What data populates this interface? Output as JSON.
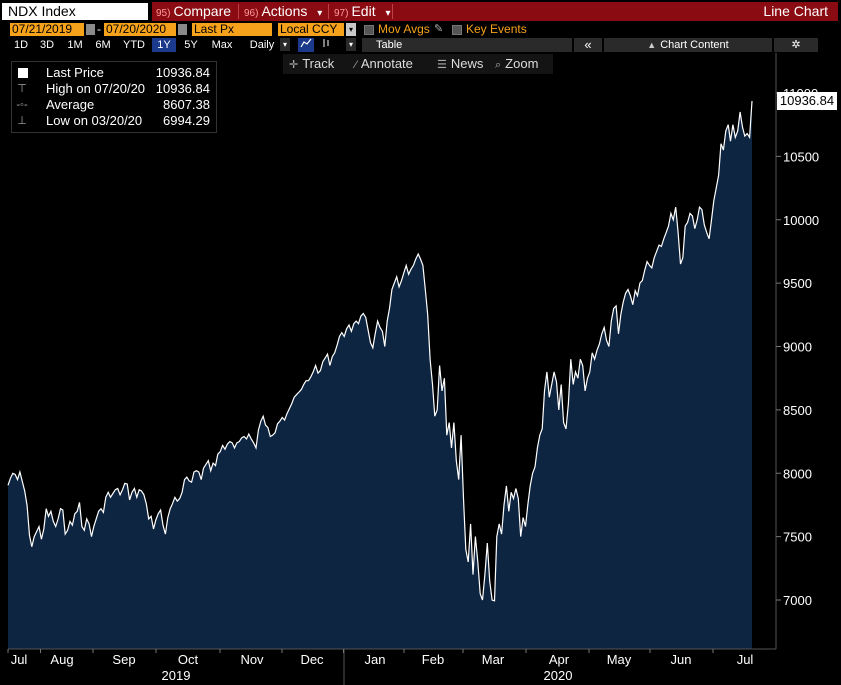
{
  "topbar": {
    "ticker": "NDX Index",
    "compare_num": "95)",
    "compare_label": "Compare",
    "actions_num": "96)",
    "actions_label": "Actions",
    "edit_num": "97)",
    "edit_label": "Edit",
    "dropdown_glyph": "▾",
    "title": "Line Chart"
  },
  "controls": {
    "start_date": "07/21/2019",
    "date_dash": "-",
    "end_date": "07/20/2020",
    "price_field": "Last Px",
    "currency": "Local CCY",
    "mov_avgs": "Mov Avgs",
    "key_events": "Key Events"
  },
  "periods": {
    "items": [
      "1D",
      "3D",
      "1M",
      "6M",
      "YTD",
      "1Y",
      "5Y",
      "Max"
    ],
    "selected": "1Y",
    "frequency": "Daily",
    "table": "Table",
    "collapse": "«",
    "chart_content": "Chart Content",
    "settings_glyph": "✲"
  },
  "toolbar": {
    "track": "Track",
    "annotate": "Annotate",
    "news": "News",
    "zoom": "Zoom"
  },
  "legend": [
    {
      "label": "Last Price",
      "value": "10936.84",
      "icon": "square-icon"
    },
    {
      "label": "High on 07/20/20",
      "value": "10936.84",
      "icon": "high-marker-icon"
    },
    {
      "label": "Average",
      "value": "8607.38",
      "icon": "average-line-icon"
    },
    {
      "label": "Low on 03/20/20",
      "value": "6994.29",
      "icon": "low-marker-icon"
    }
  ],
  "last_tag": "10936.84",
  "colors": {
    "fill": "#0e2541",
    "line": "#ffffff",
    "accent": "#f7a21b",
    "menu": "#8b0b12"
  },
  "chart_data": {
    "type": "area",
    "title": "",
    "xlabel": "",
    "ylabel": "",
    "ylim": [
      6600,
      11250
    ],
    "yticks": [
      7000,
      7500,
      8000,
      8500,
      9000,
      9500,
      10000,
      10500,
      11000
    ],
    "month_labels": [
      "Jul",
      "Aug",
      "Sep",
      "Oct",
      "Nov",
      "Dec",
      "Jan",
      "Feb",
      "Mar",
      "Apr",
      "May",
      "Jun",
      "Jul"
    ],
    "year_labels": [
      "2019",
      "2020"
    ],
    "grid": false,
    "legend_position": "top-left",
    "series": [
      {
        "values": [
          7905,
          7960,
          8000,
          7990,
          7950,
          8010,
          7935,
          7860,
          7745,
          7510,
          7420,
          7500,
          7540,
          7580,
          7480,
          7560,
          7720,
          7660,
          7700,
          7620,
          7580,
          7640,
          7720,
          7710,
          7520,
          7550,
          7620,
          7590,
          7680,
          7700,
          7770,
          7580,
          7550,
          7640,
          7600,
          7500,
          7580,
          7640,
          7700,
          7720,
          7690,
          7810,
          7850,
          7810,
          7840,
          7870,
          7880,
          7830,
          7870,
          7920,
          7915,
          7790,
          7850,
          7880,
          7810,
          7870,
          7860,
          7830,
          7760,
          7640,
          7660,
          7560,
          7630,
          7680,
          7710,
          7590,
          7520,
          7650,
          7720,
          7760,
          7810,
          7780,
          7800,
          7850,
          7950,
          7970,
          7940,
          7930,
          8010,
          8020,
          8010,
          7950,
          8040,
          8070,
          8100,
          8020,
          8080,
          8060,
          8150,
          8170,
          8220,
          8190,
          8230,
          8250,
          8240,
          8200,
          8240,
          8250,
          8280,
          8290,
          8270,
          8310,
          8270,
          8240,
          8200,
          8340,
          8410,
          8450,
          8380,
          8360,
          8290,
          8300,
          8320,
          8390,
          8410,
          8440,
          8420,
          8470,
          8510,
          8550,
          8600,
          8620,
          8640,
          8660,
          8700,
          8730,
          8730,
          8760,
          8800,
          8850,
          8790,
          8810,
          8880,
          8910,
          8940,
          8850,
          8920,
          8950,
          9010,
          9080,
          9110,
          9080,
          9140,
          9170,
          9120,
          9180,
          9200,
          9180,
          9240,
          9260,
          9230,
          9130,
          9030,
          8990,
          9100,
          9200,
          9150,
          9120,
          9000,
          9200,
          9300,
          9450,
          9500,
          9550,
          9470,
          9520,
          9580,
          9640,
          9570,
          9610,
          9640,
          9690,
          9730,
          9690,
          9640,
          9450,
          9250,
          8900,
          8700,
          8450,
          8500,
          8850,
          8650,
          8750,
          8300,
          8400,
          8200,
          8400,
          8100,
          7950,
          8300,
          7800,
          7400,
          7300,
          7600,
          7200,
          7500,
          7300,
          7050,
          7000,
          7200,
          7450,
          7150,
          7000,
          6994,
          7500,
          7600,
          7520,
          7750,
          7900,
          7700,
          7850,
          7800,
          7880,
          7800,
          7500,
          7650,
          7580,
          7750,
          7900,
          8000,
          8050,
          8200,
          8300,
          8350,
          8650,
          8800,
          8600,
          8700,
          8800,
          8720,
          8500,
          8700,
          8400,
          8350,
          8550,
          8900,
          8700,
          8800,
          8750,
          8900,
          8850,
          8650,
          8750,
          8800,
          8950,
          8900,
          8970,
          9020,
          9100,
          9150,
          9050,
          9000,
          9200,
          9300,
          9320,
          9100,
          9250,
          9350,
          9420,
          9450,
          9400,
          9330,
          9440,
          9400,
          9500,
          9520,
          9600,
          9670,
          9640,
          9620,
          9700,
          9750,
          9800,
          9790,
          9850,
          9900,
          9950,
          10050,
          10000,
          10100,
          9900,
          9650,
          9700,
          9950,
          9980,
          10050,
          10030,
          9930,
          10000,
          10100,
          10080,
          9960,
          9900,
          9850,
          10000,
          10150,
          10250,
          10350,
          10600,
          10550,
          10700,
          10750,
          10620,
          10750,
          10650,
          10700,
          10850,
          10730,
          10660,
          10680,
          10650,
          10936.84
        ]
      }
    ]
  }
}
